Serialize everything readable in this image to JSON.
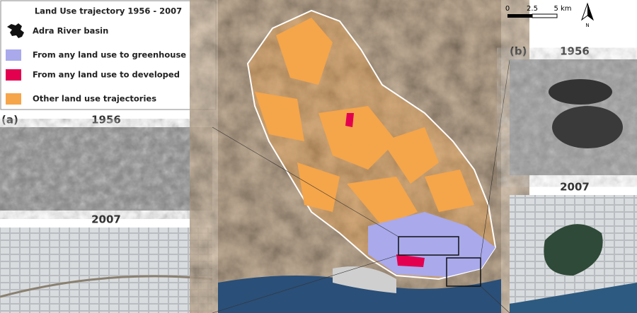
{
  "legend": {
    "title": "Land Use trajectory 1956 - 2007",
    "items": [
      {
        "label": "Adra River basin",
        "color": "#111111"
      },
      {
        "label": "From any land use to greenhouse",
        "color": "#a9a9ec"
      },
      {
        "label": "From any land use to developed",
        "color": "#e3004f"
      },
      {
        "label": "Other land use trajectories",
        "color": "#f5a54a"
      }
    ]
  },
  "panel_a": {
    "tag": "(a)",
    "top_year": "1956",
    "bottom_year": "2007"
  },
  "panel_b": {
    "tag": "(b)",
    "top_year": "1956",
    "bottom_year": "2007"
  },
  "scale_bar": {
    "labels": [
      "0",
      "2.5",
      "5 km"
    ]
  },
  "north_arrow": "N"
}
